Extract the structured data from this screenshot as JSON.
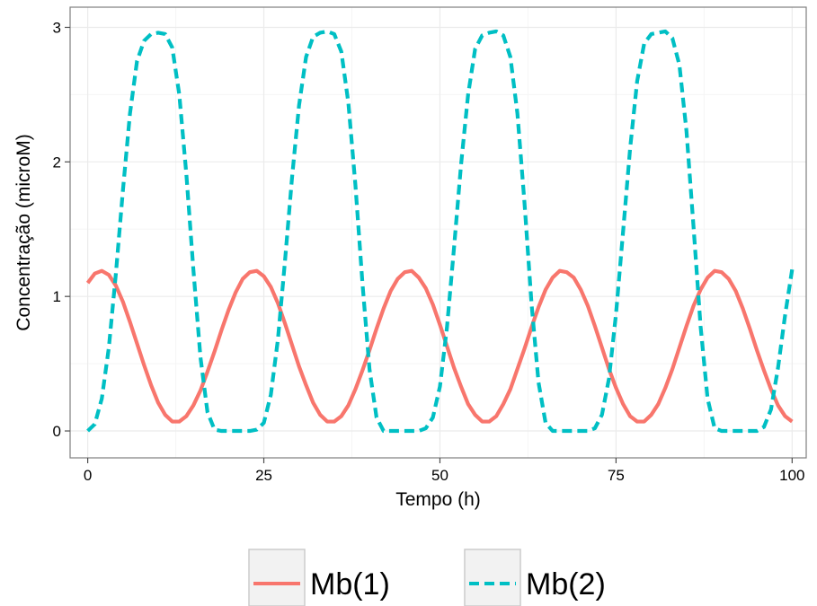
{
  "chart_data": {
    "type": "line",
    "title": "",
    "xlabel": "Tempo (h)",
    "ylabel": "Concentração (microM)",
    "xlim": [
      -2.5,
      102
    ],
    "ylim": [
      -0.2,
      3.15
    ],
    "x_ticks": [
      0,
      25,
      50,
      75,
      100
    ],
    "x_tick_labels": [
      "0",
      "25",
      "50",
      "75",
      "100"
    ],
    "y_ticks": [
      0,
      1,
      2,
      3
    ],
    "y_tick_labels": [
      "0",
      "1",
      "2",
      "3"
    ],
    "grid": true,
    "legend": {
      "placement": "bottom",
      "entries": [
        "Mb(1)",
        "Mb(2)"
      ]
    },
    "series": [
      {
        "name": "Mb(1)",
        "color": "#F8766D",
        "dash": "solid",
        "x": [
          0,
          1,
          2,
          3,
          4,
          5,
          6,
          7,
          8,
          9,
          10,
          11,
          12,
          13,
          14,
          15,
          16,
          17,
          18,
          19,
          20,
          21,
          22,
          23,
          24,
          25,
          26,
          27,
          28,
          29,
          30,
          31,
          32,
          33,
          34,
          35,
          36,
          37,
          38,
          39,
          40,
          41,
          42,
          43,
          44,
          45,
          46,
          47,
          48,
          49,
          50,
          51,
          52,
          53,
          54,
          55,
          56,
          57,
          58,
          59,
          60,
          61,
          62,
          63,
          64,
          65,
          66,
          67,
          68,
          69,
          70,
          71,
          72,
          73,
          74,
          75,
          76,
          77,
          78,
          79,
          80,
          81,
          82,
          83,
          84,
          85,
          86,
          87,
          88,
          89,
          90,
          91,
          92,
          93,
          94,
          95,
          96,
          97,
          98,
          99,
          100
        ],
        "y": [
          1.1,
          1.17,
          1.19,
          1.16,
          1.08,
          0.96,
          0.81,
          0.65,
          0.49,
          0.34,
          0.21,
          0.12,
          0.07,
          0.07,
          0.11,
          0.19,
          0.3,
          0.44,
          0.59,
          0.75,
          0.9,
          1.03,
          1.13,
          1.18,
          1.19,
          1.15,
          1.07,
          0.95,
          0.8,
          0.64,
          0.48,
          0.34,
          0.21,
          0.12,
          0.07,
          0.07,
          0.11,
          0.19,
          0.31,
          0.45,
          0.6,
          0.76,
          0.91,
          1.04,
          1.13,
          1.18,
          1.19,
          1.14,
          1.06,
          0.94,
          0.79,
          0.63,
          0.47,
          0.33,
          0.2,
          0.12,
          0.07,
          0.07,
          0.11,
          0.2,
          0.31,
          0.46,
          0.61,
          0.77,
          0.92,
          1.05,
          1.14,
          1.19,
          1.18,
          1.14,
          1.05,
          0.93,
          0.78,
          0.62,
          0.46,
          0.32,
          0.2,
          0.11,
          0.07,
          0.07,
          0.12,
          0.2,
          0.32,
          0.46,
          0.62,
          0.78,
          0.93,
          1.05,
          1.14,
          1.19,
          1.18,
          1.13,
          1.04,
          0.91,
          0.76,
          0.6,
          0.45,
          0.31,
          0.19,
          0.11,
          0.07
        ]
      },
      {
        "name": "Mb(2)",
        "color": "#00BFC4",
        "dash": "dashed",
        "x": [
          0,
          1,
          2,
          3,
          4,
          5,
          6,
          7,
          8,
          9,
          10,
          11,
          12,
          13,
          14,
          15,
          16,
          17,
          18,
          19,
          20,
          21,
          22,
          23,
          24,
          25,
          26,
          27,
          28,
          29,
          30,
          31,
          32,
          33,
          34,
          35,
          36,
          37,
          38,
          39,
          40,
          41,
          42,
          43,
          44,
          45,
          46,
          47,
          48,
          49,
          50,
          51,
          52,
          53,
          54,
          55,
          56,
          57,
          58,
          59,
          60,
          61,
          62,
          63,
          64,
          65,
          66,
          67,
          68,
          69,
          70,
          71,
          72,
          73,
          74,
          75,
          76,
          77,
          78,
          79,
          80,
          81,
          82,
          83,
          84,
          85,
          86,
          87,
          88,
          89,
          90,
          91,
          92,
          93,
          94,
          95,
          96,
          97,
          98,
          99,
          100
        ],
        "y": [
          0.0,
          0.05,
          0.24,
          0.62,
          1.17,
          1.79,
          2.36,
          2.75,
          2.9,
          2.95,
          2.96,
          2.95,
          2.85,
          2.5,
          1.91,
          1.2,
          0.55,
          0.14,
          0.01,
          0.0,
          0.0,
          0.0,
          0.0,
          0.0,
          0.01,
          0.06,
          0.27,
          0.68,
          1.26,
          1.88,
          2.42,
          2.78,
          2.93,
          2.96,
          2.97,
          2.95,
          2.82,
          2.44,
          1.83,
          1.1,
          0.46,
          0.1,
          0.0,
          0.0,
          0.0,
          0.0,
          0.0,
          0.0,
          0.02,
          0.1,
          0.33,
          0.77,
          1.36,
          1.98,
          2.5,
          2.84,
          2.94,
          2.96,
          2.97,
          2.94,
          2.78,
          2.36,
          1.7,
          0.95,
          0.36,
          0.06,
          0.0,
          0.0,
          0.0,
          0.0,
          0.0,
          0.0,
          0.02,
          0.12,
          0.39,
          0.87,
          1.48,
          2.1,
          2.6,
          2.88,
          2.95,
          2.96,
          2.97,
          2.92,
          2.72,
          2.23,
          1.52,
          0.78,
          0.24,
          0.02,
          0.0,
          0.0,
          0.0,
          0.0,
          0.0,
          0.0,
          0.03,
          0.16,
          0.47,
          0.86,
          1.2
        ]
      }
    ]
  }
}
